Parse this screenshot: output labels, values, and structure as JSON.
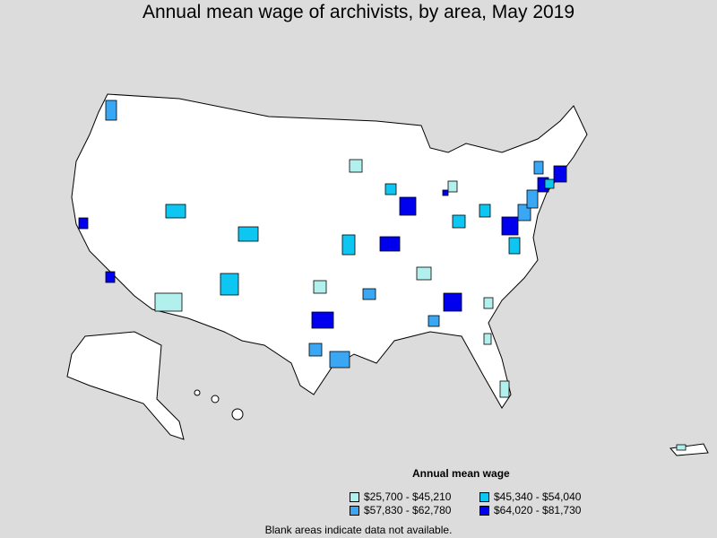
{
  "title": "Annual mean wage of archivists, by area, May 2019",
  "colors": {
    "background": "#dcdcdc",
    "no_data": "#ffffff",
    "bin1": "#b2f0ee",
    "bin2": "#3aa7f5",
    "bin3": "#0dc6f2",
    "bin4": "#0000ee"
  },
  "legend": {
    "title": "Annual mean wage",
    "items": [
      {
        "label": "$25,700 - $45,210",
        "color": "#b2f0ee"
      },
      {
        "label": "$45,340 - $54,040",
        "color": "#0dc6f2"
      },
      {
        "label": "$57,830 - $62,780",
        "color": "#3aa7f5"
      },
      {
        "label": "$64,020 - $81,730",
        "color": "#0000ee"
      }
    ]
  },
  "footnote": "Blank areas indicate data not available."
}
